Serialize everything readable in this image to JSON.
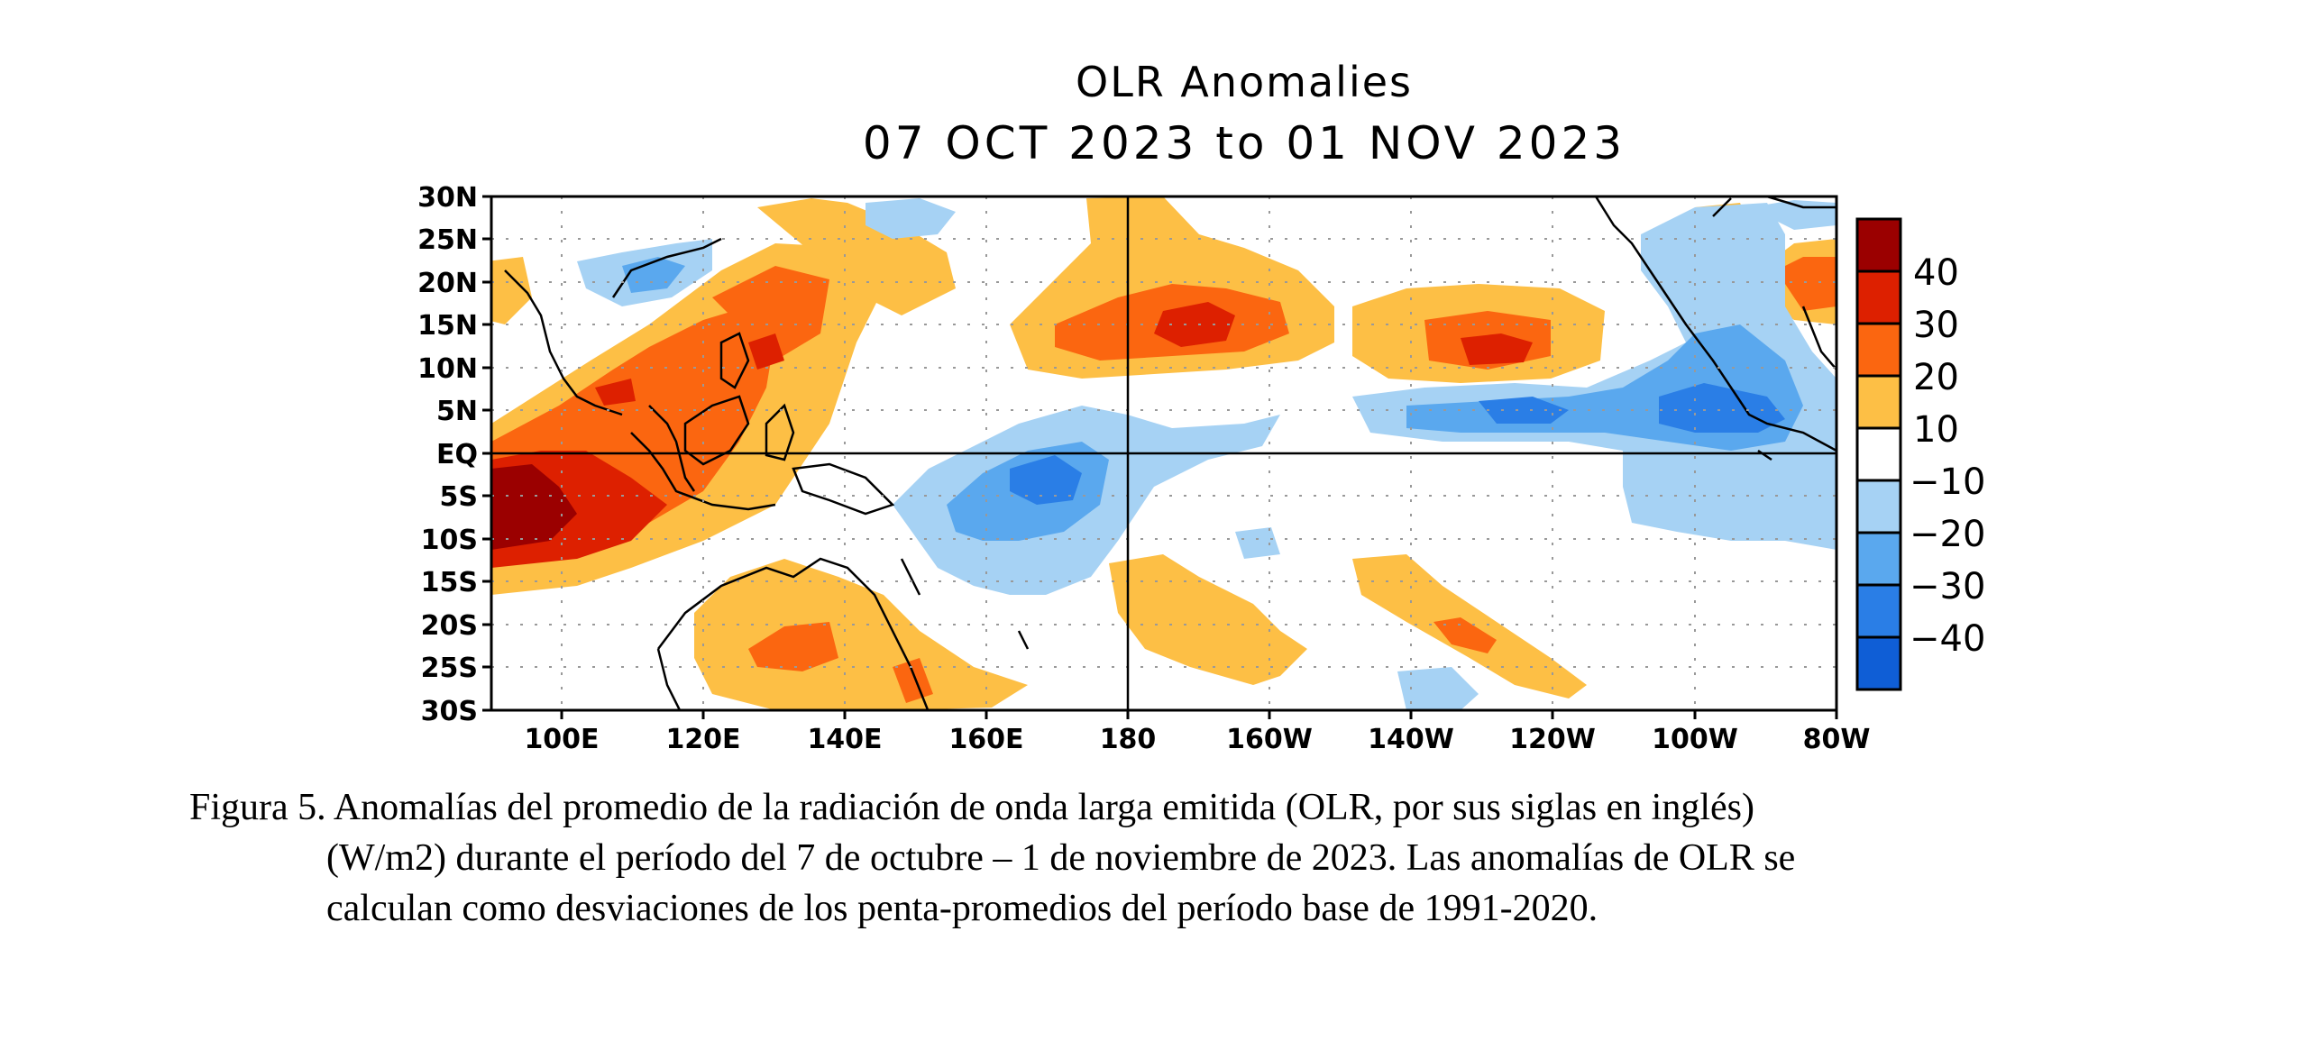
{
  "title": "OLR Anomalies",
  "subtitle": "07 OCT 2023 to 01 NOV 2023",
  "map": {
    "lat_ticks": [
      "30N",
      "25N",
      "20N",
      "15N",
      "10N",
      "5N",
      "EQ",
      "5S",
      "10S",
      "15S",
      "20S",
      "25S",
      "30S"
    ],
    "lon_ticks": [
      "100E",
      "120E",
      "140E",
      "160E",
      "180",
      "160W",
      "140W",
      "120W",
      "100W",
      "80W"
    ],
    "lat_range": [
      -30,
      30
    ],
    "lon_range": [
      90,
      280
    ]
  },
  "legend": {
    "labels": [
      "40",
      "30",
      "20",
      "10",
      "−10",
      "−20",
      "−30",
      "−40"
    ],
    "colors": [
      "#9b0000",
      "#dd2000",
      "#fb6610",
      "#fdbf45",
      "#ffffff",
      "#a6d2f4",
      "#5aa8ee",
      "#2a7ee6",
      "#0f5ed6"
    ]
  },
  "caption": {
    "line1": "Figura 5. Anomalías del promedio de la radiación de onda larga emitida (OLR, por sus siglas en inglés)",
    "line2": "(W/m2) durante el período del 7 de octubre – 1 de noviembre de 2023.  Las anomalías de OLR se",
    "line3": "calculan como desviaciones de los penta-promedios del período base de 1991-2020."
  }
}
